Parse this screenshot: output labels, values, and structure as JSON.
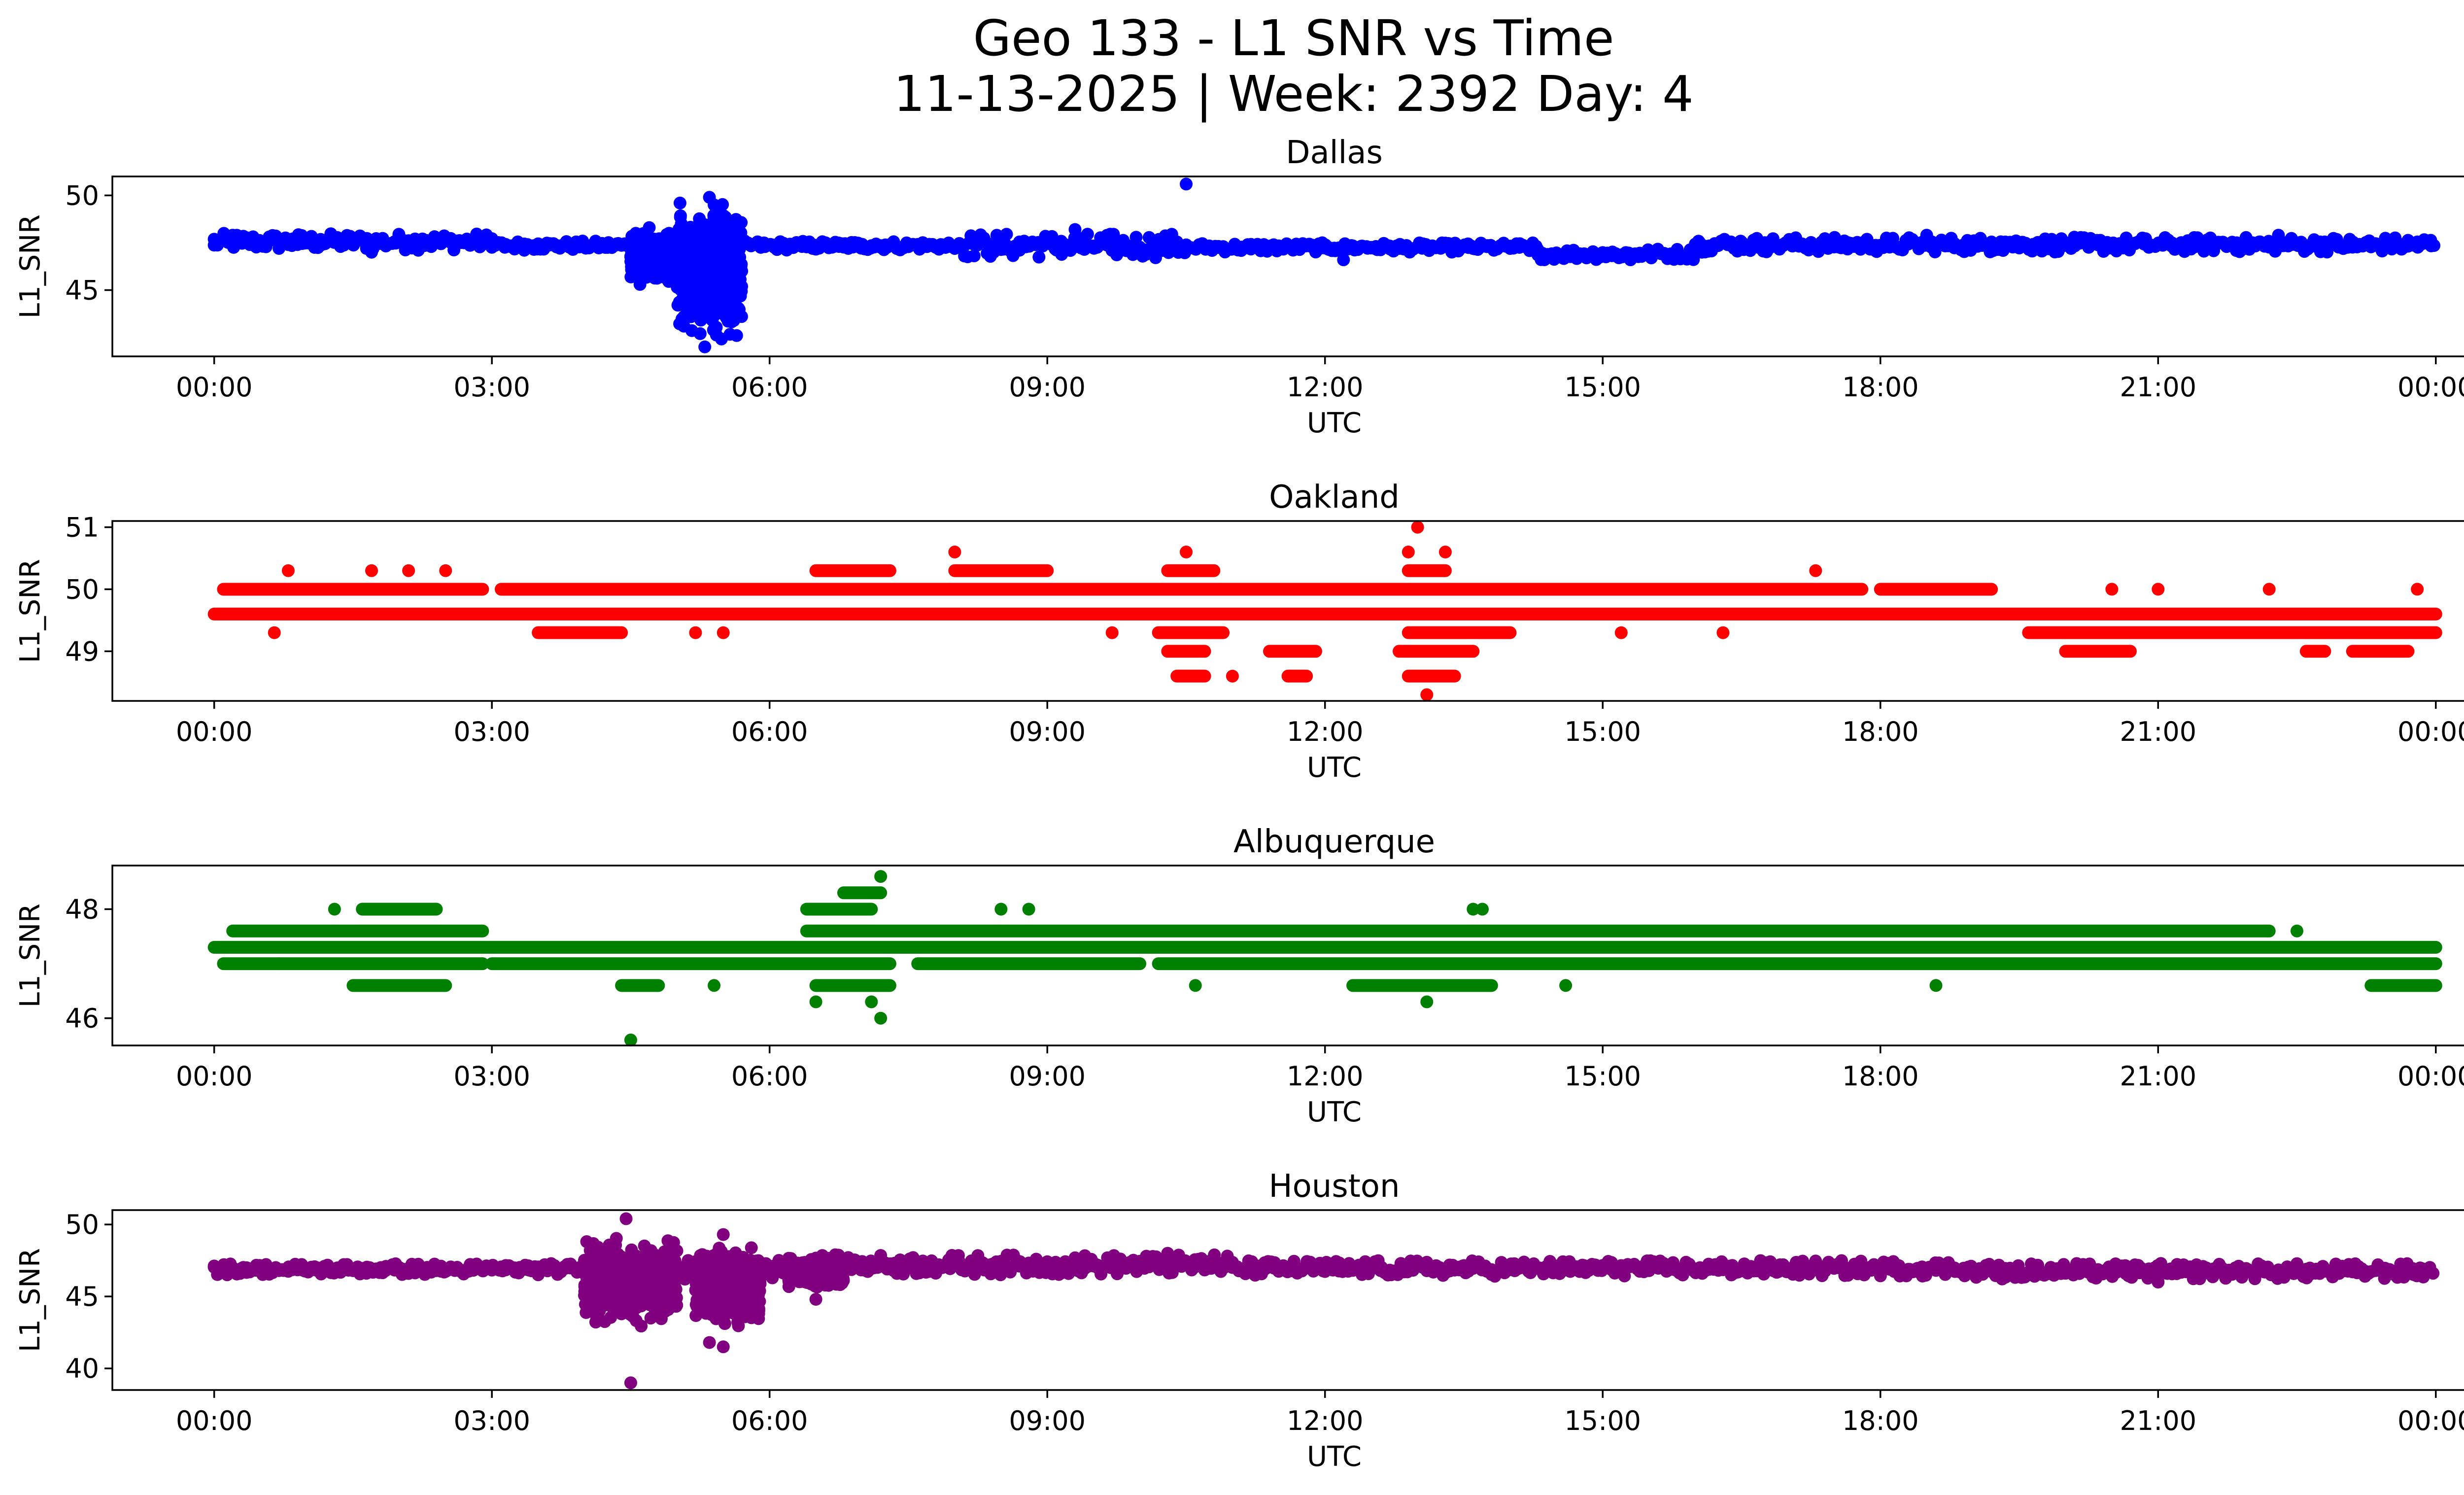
{
  "figure": {
    "title_line1": "Geo 133 - L1 SNR vs Time",
    "title_line2": "11-13-2025 | Week: 2392 Day: 4"
  },
  "chart_data": [
    {
      "type": "scatter",
      "title": "Dallas",
      "xlabel": "UTC",
      "ylabel": "L1_SNR",
      "color": "#0000ff",
      "x_unit": "hours UTC",
      "xlim": [
        -1.1,
        25.3
      ],
      "ylim": [
        41.5,
        51.0
      ],
      "xticks": [
        0,
        3,
        6,
        9,
        12,
        15,
        18,
        21,
        24
      ],
      "xtick_labels": [
        "00:00",
        "03:00",
        "06:00",
        "09:00",
        "12:00",
        "15:00",
        "18:00",
        "21:00",
        "00:00"
      ],
      "yticks": [
        45,
        50
      ],
      "ytick_labels": [
        "45",
        "50"
      ],
      "baseline": [
        {
          "from": 0.0,
          "to": 3.0,
          "low": 47.1,
          "high": 48.0
        },
        {
          "from": 3.0,
          "to": 8.0,
          "low": 47.1,
          "high": 47.6
        },
        {
          "from": 8.0,
          "to": 10.5,
          "low": 46.7,
          "high": 48.0
        },
        {
          "from": 10.5,
          "to": 14.3,
          "low": 47.0,
          "high": 47.5
        },
        {
          "from": 14.3,
          "to": 16.0,
          "low": 46.6,
          "high": 47.2
        },
        {
          "from": 16.0,
          "to": 24.0,
          "low": 47.0,
          "high": 47.8
        }
      ],
      "bursts": [
        {
          "from": 4.5,
          "to": 5.0,
          "low": 45.2,
          "high": 48.3
        },
        {
          "from": 5.0,
          "to": 5.7,
          "low": 42.0,
          "high": 50.0
        }
      ],
      "outliers": [
        [
          10.5,
          50.6
        ],
        [
          4.6,
          45.3
        ],
        [
          5.3,
          42.0
        ],
        [
          5.25,
          42.7
        ],
        [
          5.35,
          49.9
        ],
        [
          5.4,
          49.5
        ],
        [
          9.3,
          48.2
        ],
        [
          12.2,
          46.6
        ],
        [
          15.3,
          46.6
        ],
        [
          18.5,
          47.9
        ],
        [
          0.2,
          47.9
        ],
        [
          22.3,
          47.9
        ],
        [
          0.6,
          47.8
        ],
        [
          1.7,
          47.0
        ],
        [
          4.7,
          48.3
        ]
      ]
    },
    {
      "type": "scatter",
      "title": "Oakland",
      "xlabel": "UTC",
      "ylabel": "L1_SNR",
      "color": "#ff0000",
      "x_unit": "hours UTC",
      "xlim": [
        -1.1,
        25.3
      ],
      "ylim": [
        48.2,
        51.1
      ],
      "xticks": [
        0,
        3,
        6,
        9,
        12,
        15,
        18,
        21,
        24
      ],
      "xtick_labels": [
        "00:00",
        "03:00",
        "06:00",
        "09:00",
        "12:00",
        "15:00",
        "18:00",
        "21:00",
        "00:00"
      ],
      "yticks": [
        49,
        50,
        51
      ],
      "ytick_labels": [
        "49",
        "50",
        "51"
      ],
      "levels": [
        {
          "value": 49.6,
          "segments": [
            [
              0.0,
              24.0
            ]
          ]
        },
        {
          "value": 50.0,
          "segments": [
            [
              0.1,
              2.9
            ],
            [
              3.1,
              17.8
            ],
            [
              18.0,
              19.2
            ]
          ]
        },
        {
          "value": 49.3,
          "segments": [
            [
              3.5,
              4.4
            ],
            [
              10.2,
              10.9
            ],
            [
              12.9,
              14.0
            ],
            [
              19.6,
              24.0
            ]
          ]
        },
        {
          "value": 50.3,
          "segments": [
            [
              6.5,
              7.3
            ],
            [
              8.0,
              9.0
            ],
            [
              10.3,
              10.8
            ],
            [
              12.9,
              13.3
            ]
          ]
        },
        {
          "value": 49.0,
          "segments": [
            [
              10.3,
              10.7
            ],
            [
              11.4,
              11.9
            ],
            [
              12.8,
              13.6
            ],
            [
              20.0,
              20.7
            ],
            [
              22.6,
              22.8
            ],
            [
              23.1,
              23.7
            ]
          ]
        },
        {
          "value": 48.6,
          "segments": [
            [
              10.4,
              10.7
            ],
            [
              11.6,
              11.8
            ],
            [
              12.9,
              13.4
            ]
          ]
        }
      ],
      "outliers": [
        [
          0.8,
          50.3
        ],
        [
          1.7,
          50.3
        ],
        [
          2.1,
          50.3
        ],
        [
          2.5,
          50.3
        ],
        [
          0.65,
          49.3
        ],
        [
          13.0,
          51.0
        ],
        [
          13.3,
          50.6
        ],
        [
          12.9,
          50.6
        ],
        [
          10.5,
          50.6
        ],
        [
          8.0,
          50.6
        ],
        [
          13.1,
          48.3
        ],
        [
          17.3,
          50.3
        ],
        [
          20.5,
          50.0
        ],
        [
          21.0,
          50.0
        ],
        [
          22.2,
          50.0
        ],
        [
          23.8,
          50.0
        ],
        [
          15.2,
          49.3
        ],
        [
          16.3,
          49.3
        ],
        [
          9.7,
          49.3
        ],
        [
          5.5,
          49.3
        ],
        [
          5.2,
          49.3
        ],
        [
          11.0,
          48.6
        ]
      ]
    },
    {
      "type": "scatter",
      "title": "Albuquerque",
      "xlabel": "UTC",
      "ylabel": "L1_SNR",
      "color": "#008000",
      "x_unit": "hours UTC",
      "xlim": [
        -1.1,
        25.3
      ],
      "ylim": [
        45.5,
        48.8
      ],
      "xticks": [
        0,
        3,
        6,
        9,
        12,
        15,
        18,
        21,
        24
      ],
      "xtick_labels": [
        "00:00",
        "03:00",
        "06:00",
        "09:00",
        "12:00",
        "15:00",
        "18:00",
        "21:00",
        "00:00"
      ],
      "yticks": [
        46,
        48
      ],
      "ytick_labels": [
        "46",
        "48"
      ],
      "levels": [
        {
          "value": 47.3,
          "segments": [
            [
              0.0,
              24.0
            ]
          ]
        },
        {
          "value": 47.0,
          "segments": [
            [
              0.1,
              2.9
            ],
            [
              3.0,
              7.3
            ],
            [
              7.6,
              10.0
            ],
            [
              10.2,
              24.0
            ]
          ]
        },
        {
          "value": 47.6,
          "segments": [
            [
              0.2,
              2.9
            ],
            [
              6.4,
              22.2
            ]
          ]
        },
        {
          "value": 46.6,
          "segments": [
            [
              1.5,
              2.5
            ],
            [
              4.4,
              4.8
            ],
            [
              6.5,
              7.3
            ],
            [
              12.3,
              13.8
            ],
            [
              23.3,
              24.0
            ]
          ]
        },
        {
          "value": 48.0,
          "segments": [
            [
              1.6,
              2.4
            ],
            [
              6.4,
              7.1
            ]
          ]
        },
        {
          "value": 48.3,
          "segments": [
            [
              6.8,
              7.2
            ]
          ]
        }
      ],
      "outliers": [
        [
          4.5,
          45.6
        ],
        [
          7.2,
          46.0
        ],
        [
          7.1,
          46.3
        ],
        [
          6.5,
          46.3
        ],
        [
          7.2,
          48.6
        ],
        [
          13.1,
          46.3
        ],
        [
          18.6,
          46.6
        ],
        [
          10.6,
          46.6
        ],
        [
          14.6,
          46.6
        ],
        [
          5.4,
          46.6
        ],
        [
          8.5,
          48.0
        ],
        [
          8.8,
          48.0
        ],
        [
          13.7,
          48.0
        ],
        [
          13.6,
          48.0
        ],
        [
          22.5,
          47.6
        ],
        [
          0.7,
          47.0
        ],
        [
          1.3,
          48.0
        ]
      ]
    },
    {
      "type": "scatter",
      "title": "Houston",
      "xlabel": "UTC",
      "ylabel": "L1_SNR",
      "color": "#800080",
      "x_unit": "hours UTC",
      "xlim": [
        -1.1,
        25.3
      ],
      "ylim": [
        38.5,
        51.0
      ],
      "xticks": [
        0,
        3,
        6,
        9,
        12,
        15,
        18,
        21,
        24
      ],
      "xtick_labels": [
        "00:00",
        "03:00",
        "06:00",
        "09:00",
        "12:00",
        "15:00",
        "18:00",
        "21:00",
        "00:00"
      ],
      "yticks": [
        40,
        45,
        50
      ],
      "ytick_labels": [
        "40",
        "45",
        "50"
      ],
      "baseline": [
        {
          "from": 0.0,
          "to": 4.0,
          "low": 46.5,
          "high": 47.3
        },
        {
          "from": 4.0,
          "to": 6.5,
          "low": 46.2,
          "high": 47.6
        },
        {
          "from": 6.5,
          "to": 11.0,
          "low": 46.5,
          "high": 47.9
        },
        {
          "from": 11.0,
          "to": 19.0,
          "low": 46.4,
          "high": 47.5
        },
        {
          "from": 19.0,
          "to": 24.0,
          "low": 46.2,
          "high": 47.3
        }
      ],
      "bursts": [
        {
          "from": 4.0,
          "to": 5.0,
          "low": 42.5,
          "high": 49.5
        },
        {
          "from": 5.2,
          "to": 5.9,
          "low": 42.5,
          "high": 49.0
        },
        {
          "from": 6.2,
          "to": 6.8,
          "low": 45.5,
          "high": 47.8
        }
      ],
      "outliers": [
        [
          4.5,
          39.0
        ],
        [
          4.45,
          50.4
        ],
        [
          5.5,
          41.5
        ],
        [
          5.35,
          41.8
        ],
        [
          6.5,
          44.8
        ],
        [
          10.3,
          48.0
        ],
        [
          21.0,
          46.0
        ],
        [
          5.5,
          49.3
        ]
      ]
    }
  ]
}
